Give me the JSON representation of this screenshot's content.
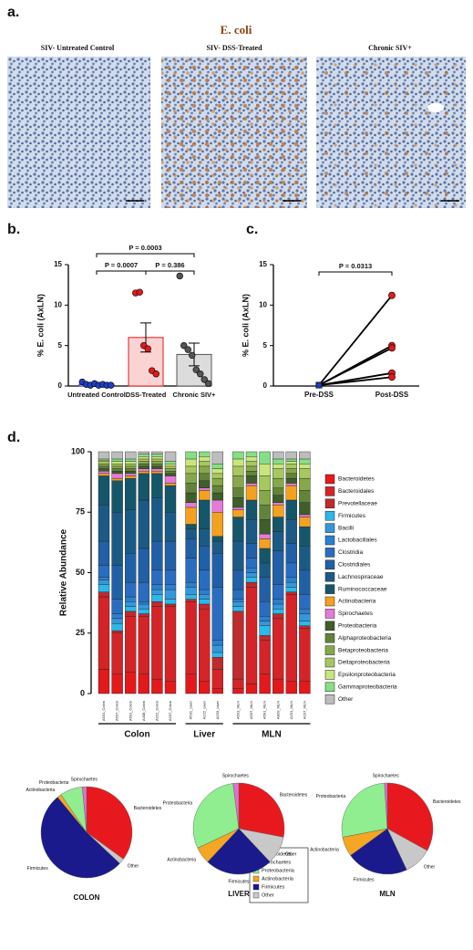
{
  "figure": {
    "panel_labels": [
      "a.",
      "b.",
      "c.",
      "d."
    ],
    "stain_title": "E. coli",
    "image_captions": [
      "SIV- Untreated Control",
      "SIV- DSS-Treated",
      "Chronic SIV+"
    ]
  },
  "chart_data": [
    {
      "type": "bar",
      "ylabel": "% E. coli (AxLN)",
      "categories": [
        "Untreated Control",
        "DSS-Treated",
        "Chronic SIV+"
      ],
      "values": [
        0.2,
        6.0,
        3.9
      ],
      "errors": [
        0.1,
        1.8,
        1.4
      ],
      "points": [
        [
          0.5,
          0.2,
          0.1,
          0.3,
          0.1,
          0.2,
          0.1,
          0.1
        ],
        [
          11.5,
          11.6,
          5.0,
          4.6,
          1.9,
          1.5
        ],
        [
          13.6,
          5.0,
          4.5,
          3.8,
          2.0,
          1.5,
          0.8,
          0.3
        ]
      ],
      "bar_colors": [
        "#ffffff",
        "#fbd3d3",
        "#dcdcdc"
      ],
      "point_colors": [
        "#1f3fbf",
        "#e31a1c",
        "#555555"
      ],
      "ylim": [
        0,
        15
      ],
      "yticks": [
        0,
        5,
        10,
        15
      ],
      "annotations": [
        "P = 0.0003",
        "P = 0.0007",
        "P = 0.386"
      ]
    },
    {
      "type": "line",
      "ylabel": "% E. coli (AxLN)",
      "categories": [
        "Pre-DSS",
        "Post-DSS"
      ],
      "series": [
        {
          "values": [
            0.1,
            11.2
          ]
        },
        {
          "values": [
            0.1,
            5.0
          ]
        },
        {
          "values": [
            0.1,
            4.7
          ]
        },
        {
          "values": [
            0.1,
            1.6
          ]
        },
        {
          "values": [
            0.1,
            1.1
          ]
        }
      ],
      "point_colors": [
        "#1f3fbf",
        "#e31a1c"
      ],
      "ylim": [
        0,
        15
      ],
      "yticks": [
        0,
        5,
        10,
        15
      ],
      "annotations": [
        "P = 0.0313"
      ]
    },
    {
      "type": "stacked_bar",
      "ylabel": "Relative Abundance",
      "groups": [
        {
          "name": "Colon",
          "categories": [
            "A531_Colon",
            "A537_Colon",
            "A591_Colon",
            "A438_Colon",
            "A222_Colon",
            "A237_Colon"
          ]
        },
        {
          "name": "Liver",
          "categories": [
            "A531_Liver",
            "A222_Liver",
            "A233_Liver"
          ]
        },
        {
          "name": "MLN",
          "categories": [
            "A531_MLN",
            "A537_MLN",
            "A591_MLN",
            "A820_MLN",
            "A231_MLN",
            "A237_MLN"
          ]
        }
      ],
      "series": [
        {
          "name": "Bacteroidetes",
          "color": "#e3191c",
          "values": [
            10,
            8,
            9,
            8,
            6,
            5,
            8,
            5,
            2,
            2,
            4,
            8,
            6,
            5,
            5
          ]
        },
        {
          "name": "Bacteroidales",
          "color": "#d42428",
          "values": [
            30,
            17,
            23,
            24,
            30,
            31,
            30,
            30,
            8,
            4,
            40,
            14,
            25,
            36,
            22
          ]
        },
        {
          "name": "Prevotellaceae",
          "color": "#bf2a2e",
          "values": [
            2,
            1,
            2,
            1,
            2,
            1,
            1,
            2,
            5,
            28,
            2,
            2,
            2,
            1,
            1
          ]
        },
        {
          "name": "Firmicutes",
          "color": "#2bb8ea",
          "values": [
            3,
            3,
            2,
            2,
            3,
            2,
            2,
            2,
            2,
            2,
            2,
            4,
            2,
            2,
            2
          ]
        },
        {
          "name": "Bacilli",
          "color": "#3596dc",
          "values": [
            2,
            2,
            2,
            2,
            2,
            4,
            3,
            2,
            3,
            2,
            2,
            2,
            2,
            2,
            3
          ]
        },
        {
          "name": "Lactobacillales",
          "color": "#2a80d0",
          "values": [
            1,
            2,
            2,
            1,
            2,
            2,
            2,
            2,
            2,
            1,
            2,
            2,
            2,
            2,
            2
          ]
        },
        {
          "name": "Clostridia",
          "color": "#2a6dc0",
          "values": [
            5,
            6,
            6,
            8,
            6,
            6,
            10,
            8,
            22,
            4,
            4,
            6,
            6,
            6,
            6
          ]
        },
        {
          "name": "Clostridiales",
          "color": "#2160a6",
          "values": [
            10,
            14,
            12,
            14,
            12,
            12,
            8,
            10,
            14,
            8,
            6,
            10,
            14,
            8,
            10
          ]
        },
        {
          "name": "Lachnospiraceae",
          "color": "#1c5a86",
          "values": [
            15,
            22,
            18,
            20,
            18,
            12,
            4,
            7,
            5,
            12,
            10,
            6,
            8,
            10,
            10
          ]
        },
        {
          "name": "Ruminococcaceae",
          "color": "#16566a",
          "values": [
            12,
            13,
            13,
            11,
            10,
            11,
            2,
            12,
            2,
            10,
            8,
            6,
            6,
            8,
            8
          ]
        },
        {
          "name": "Actinobacteria",
          "color": "#f4a11f",
          "values": [
            1,
            1,
            1,
            1,
            1,
            1,
            7,
            4,
            10,
            3,
            6,
            4,
            5,
            6,
            4
          ]
        },
        {
          "name": "Spirochaetes",
          "color": "#e57ad8",
          "values": [
            1,
            2,
            1,
            1,
            1,
            3,
            2,
            1,
            5,
            1,
            1,
            2,
            1,
            1,
            1
          ]
        },
        {
          "name": "Proteobacteria",
          "color": "#3f5e2a",
          "values": [
            1,
            1,
            1,
            1,
            1,
            1,
            4,
            3,
            3,
            4,
            3,
            6,
            3,
            2,
            5
          ]
        },
        {
          "name": "Alphaproteobacteria",
          "color": "#62843a",
          "values": [
            1,
            1,
            1,
            1,
            1,
            1,
            4,
            3,
            3,
            4,
            2,
            6,
            3,
            2,
            5
          ]
        },
        {
          "name": "Betaproteobacteria",
          "color": "#86a84a",
          "values": [
            1,
            1,
            1,
            1,
            1,
            1,
            4,
            3,
            3,
            5,
            2,
            6,
            4,
            2,
            5
          ]
        },
        {
          "name": "Deltaproteobacteria",
          "color": "#a6c85e",
          "values": [
            1,
            1,
            1,
            1,
            1,
            1,
            3,
            2,
            2,
            4,
            2,
            6,
            4,
            2,
            4
          ]
        },
        {
          "name": "Epsilonproteobacteria",
          "color": "#c8e67c",
          "values": [
            0.5,
            1,
            1,
            1,
            1,
            1,
            3,
            2,
            2,
            3,
            2,
            5,
            2,
            1,
            2
          ]
        },
        {
          "name": "Gammaproteobacteria",
          "color": "#86df86",
          "values": [
            0.5,
            1,
            1,
            1,
            1,
            1,
            3,
            2,
            2,
            3,
            2,
            5,
            2,
            1,
            2
          ]
        },
        {
          "name": "Other",
          "color": "#bdbdbd",
          "values": [
            3,
            3,
            3,
            1,
            1,
            4,
            0,
            0,
            5,
            0,
            0,
            0,
            3,
            3,
            3
          ]
        }
      ],
      "ylim": [
        0,
        100
      ],
      "yticks": [
        0,
        25,
        50,
        75,
        100
      ]
    },
    {
      "type": "pie",
      "title": "COLON",
      "categories": [
        "Bacteroidetes",
        "Spirochaetes",
        "Proteobacteria",
        "Actinobacteria",
        "Firmicutes",
        "Other"
      ],
      "values": [
        35,
        1.5,
        8,
        1.5,
        52,
        2
      ],
      "colors": [
        "#e8191e",
        "#e070d0",
        "#90ee90",
        "#f5a623",
        "#1a1a8c",
        "#c8c8c8"
      ]
    },
    {
      "type": "pie",
      "title": "LIVER",
      "categories": [
        "Bacteroidetes",
        "Spirochaetes",
        "Proteobacteria",
        "Actinobacteria",
        "Firmicutes",
        "Other"
      ],
      "values": [
        28,
        2,
        30,
        6,
        24,
        10
      ],
      "colors": [
        "#e8191e",
        "#e070d0",
        "#90ee90",
        "#f5a623",
        "#1a1a8c",
        "#c8c8c8"
      ]
    },
    {
      "type": "pie",
      "title": "MLN",
      "categories": [
        "Bacteroidetes",
        "Spirochaetes",
        "Proteobacteria",
        "Actinobacteria",
        "Firmicutes",
        "Other"
      ],
      "values": [
        33,
        1,
        27,
        7,
        22,
        10
      ],
      "colors": [
        "#e8191e",
        "#e070d0",
        "#90ee90",
        "#f5a623",
        "#1a1a8c",
        "#c8c8c8"
      ]
    }
  ]
}
